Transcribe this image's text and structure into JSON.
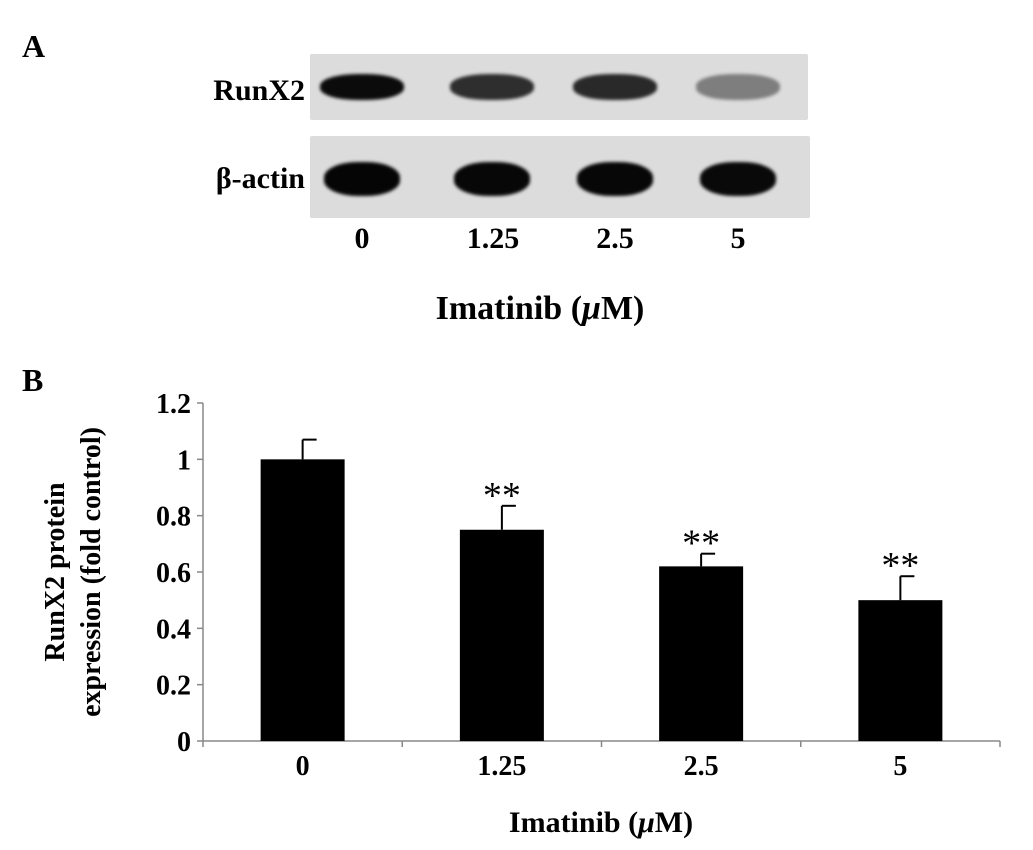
{
  "panel_a": {
    "label": "A",
    "rows": [
      {
        "name": "RunX2",
        "intensities": [
          0.95,
          0.8,
          0.82,
          0.45
        ]
      },
      {
        "name": "β-actin",
        "intensities": [
          0.98,
          0.97,
          0.97,
          0.96
        ]
      }
    ],
    "lanes": [
      "0",
      "1.25",
      "2.5",
      "5"
    ],
    "xlabel_main": "Imatinib (",
    "xlabel_mu": "μ",
    "xlabel_end": "M)"
  },
  "panel_b": {
    "label": "B"
  },
  "chart_data": {
    "type": "bar",
    "categories": [
      "0",
      "1.25",
      "2.5",
      "5"
    ],
    "values": [
      1.0,
      0.75,
      0.62,
      0.5
    ],
    "errors": [
      0.07,
      0.085,
      0.045,
      0.085
    ],
    "significance": [
      "",
      "**",
      "**",
      "**"
    ],
    "ylabel_line1": "RunX2 protein",
    "ylabel_line2": "expression (fold control)",
    "xlabel_main": "Imatinib (",
    "xlabel_mu": "μ",
    "xlabel_end": "M)",
    "yticks": [
      "0",
      "0.2",
      "0.4",
      "0.6",
      "0.8",
      "1",
      "1.2"
    ],
    "ylim": [
      0,
      1.2
    ],
    "bar_color": "#000000",
    "grid": false
  }
}
